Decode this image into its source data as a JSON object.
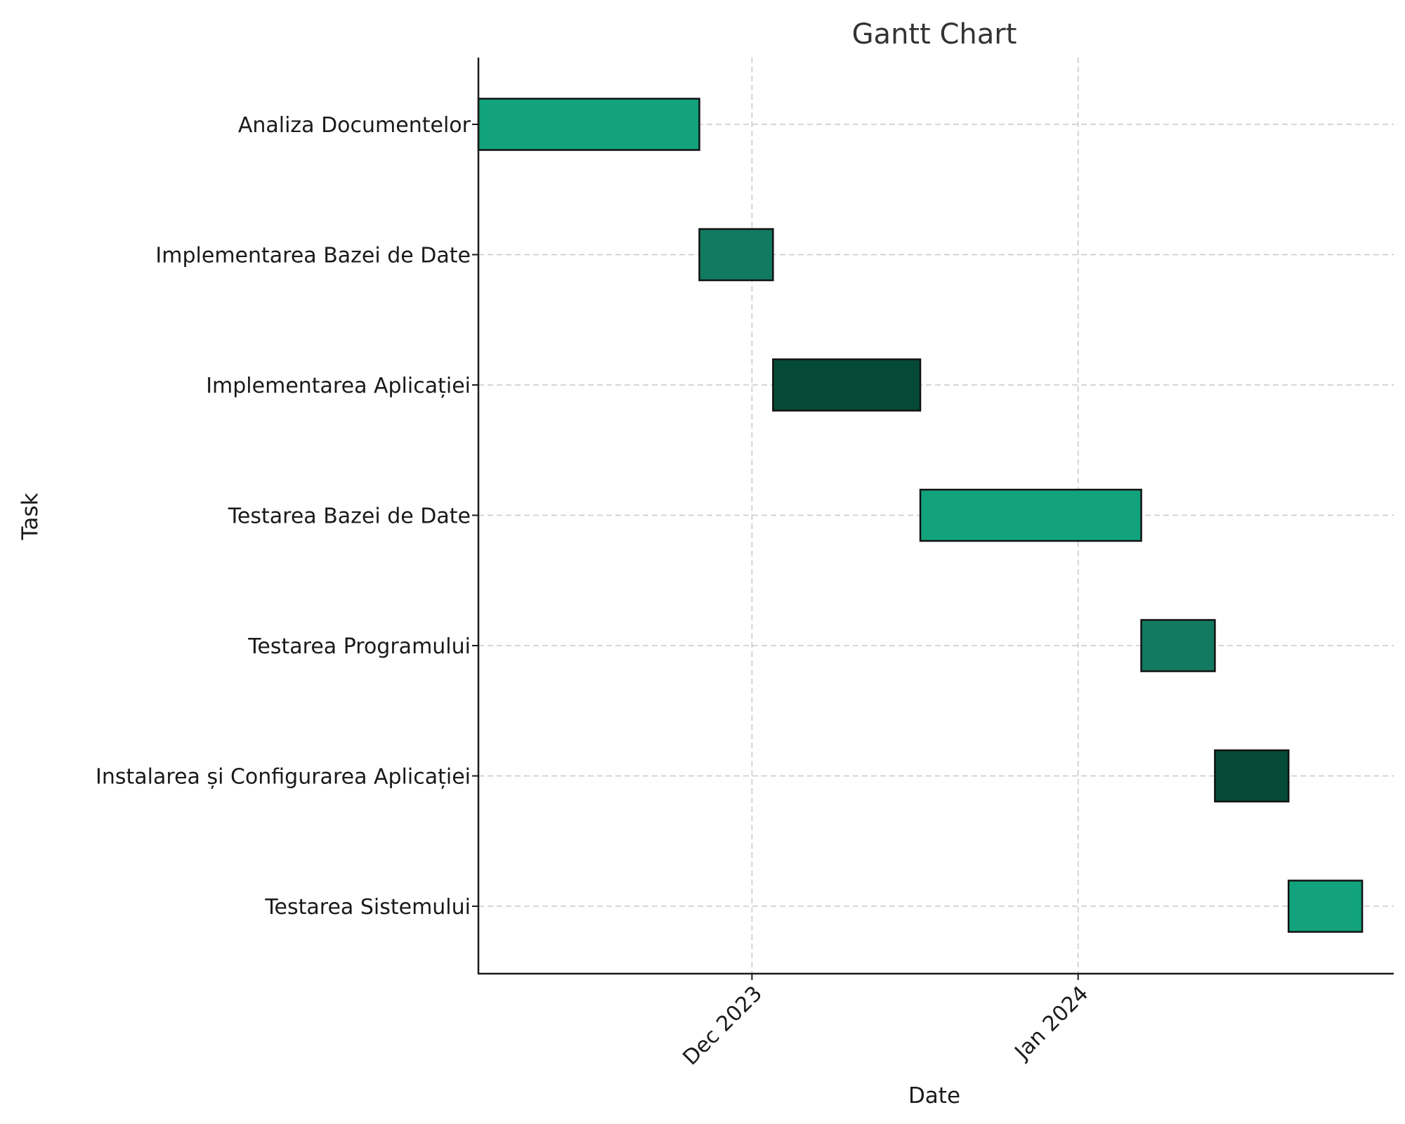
{
  "chart_data": {
    "type": "gantt",
    "title": "Gantt Chart",
    "xlabel": "Date",
    "ylabel": "Task",
    "xlim": [
      "2023-11-05",
      "2024-01-31"
    ],
    "x_ticks": [
      {
        "date": "2023-12-01",
        "label": "Dec 2023"
      },
      {
        "date": "2024-01-01",
        "label": "Jan 2024"
      }
    ],
    "grid": true,
    "tasks": [
      {
        "name": "Analiza Documentelor",
        "start": "2023-11-05",
        "end": "2023-11-26",
        "color": "#12A37D"
      },
      {
        "name": "Implementarea Bazei de Date",
        "start": "2023-11-26",
        "end": "2023-12-03",
        "color": "#137A62"
      },
      {
        "name": "Implementarea Aplicației",
        "start": "2023-12-03",
        "end": "2023-12-17",
        "color": "#044A37"
      },
      {
        "name": "Testarea Bazei de Date",
        "start": "2023-12-17",
        "end": "2024-01-07",
        "color": "#12A37D"
      },
      {
        "name": "Testarea Programului",
        "start": "2024-01-07",
        "end": "2024-01-14",
        "color": "#137A62"
      },
      {
        "name": "Instalarea și Configurarea Aplicației",
        "start": "2024-01-14",
        "end": "2024-01-21",
        "color": "#044A37"
      },
      {
        "name": "Testarea Sistemului",
        "start": "2024-01-21",
        "end": "2024-01-28",
        "color": "#12A37D"
      }
    ]
  }
}
